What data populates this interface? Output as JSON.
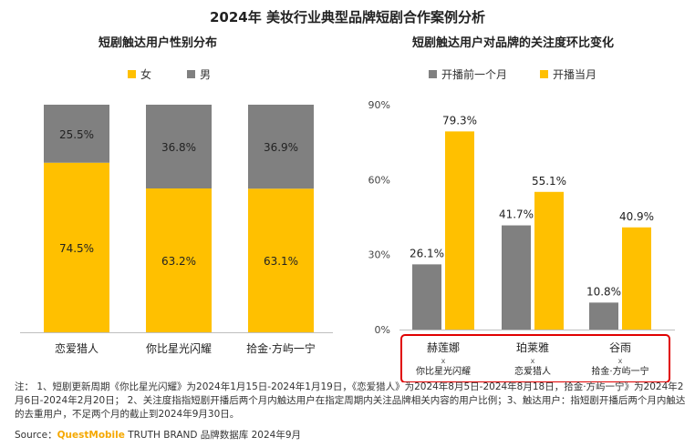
{
  "title": "2024年 美妆行业典型品牌短剧合作案例分析",
  "notes": "注： 1、短剧更新周期《你比星光闪耀》为2024年1月15日-2024年1月19日，《恋爱猎人》为2024年8月5日-2024年8月18日，拾金·方屿一宁》为2024年2月6日-2024年2月20日； 2、关注度指指短剧开播后两个月内触达用户在指定周期内关注品牌相关内容的用户比例；3、触达用户：指短剧开播后两个月内触达的去重用户，不足两个月的截止到2024年9月30日。",
  "source": {
    "prefix": "Source：",
    "brand": "QuestMobile",
    "suffix": " TRUTH BRAND 品牌数据库 2024年9月"
  },
  "colors": {
    "female": "#ffc000",
    "male": "#808080",
    "highlight": "#e00000"
  },
  "chart_data": [
    {
      "type": "bar",
      "stacked": true,
      "title": "短剧触达用户性别分布",
      "categories": [
        "恋爱猎人",
        "你比星光闪耀",
        "拾金·方屿一宁"
      ],
      "series": [
        {
          "name": "女",
          "values": [
            74.5,
            63.2,
            63.1
          ],
          "labels": [
            "74.5%",
            "63.2%",
            "63.1%"
          ]
        },
        {
          "name": "男",
          "values": [
            25.5,
            36.8,
            36.9
          ],
          "labels": [
            "25.5%",
            "36.8%",
            "36.9%"
          ]
        }
      ],
      "ylim": [
        0,
        100
      ],
      "legend": "top"
    },
    {
      "type": "bar",
      "title": "短剧触达用户对品牌的关注度环比变化",
      "categories": [
        "赫莲娜",
        "珀莱雅",
        "谷雨"
      ],
      "category_sublabels": [
        "你比星光闪耀",
        "恋爱猎人",
        "拾金·方屿一宁"
      ],
      "category_separator": "x",
      "series": [
        {
          "name": "开播前一个月",
          "values": [
            26.1,
            41.7,
            10.8
          ],
          "labels": [
            "26.1%",
            "41.7%",
            "10.8%"
          ]
        },
        {
          "name": "开播当月",
          "values": [
            79.3,
            55.1,
            40.9
          ],
          "labels": [
            "79.3%",
            "55.1%",
            "40.9%"
          ]
        }
      ],
      "yticks": [
        "0%",
        "30%",
        "60%",
        "90%"
      ],
      "ytick_values": [
        0,
        30,
        60,
        90
      ],
      "ylim": [
        0,
        90
      ],
      "legend": "top"
    }
  ]
}
